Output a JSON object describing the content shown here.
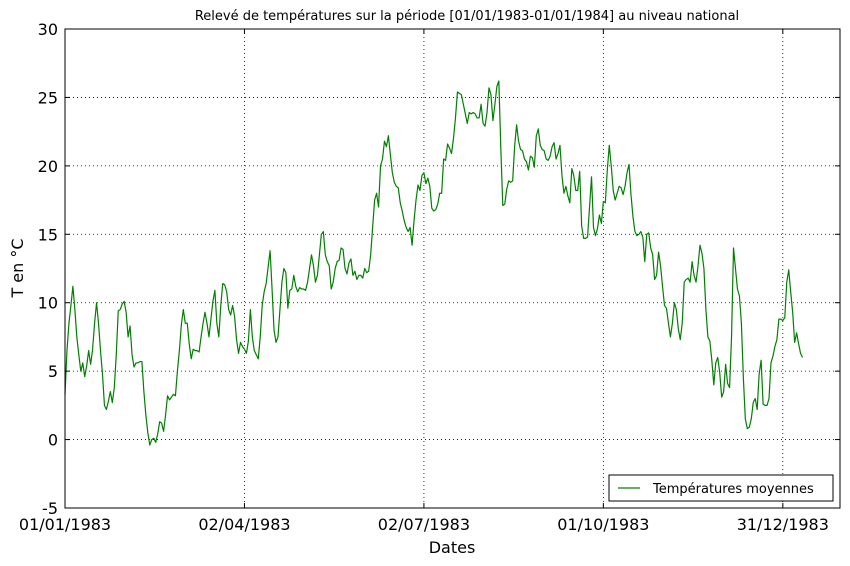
{
  "chart_data": {
    "type": "line",
    "title": "Relevé de températures sur la période [01/01/1983-01/01/1984] au niveau national",
    "xlabel": "Dates",
    "ylabel": "T en °C",
    "ylim": [
      -5,
      30
    ],
    "yticks": [
      -5,
      0,
      5,
      10,
      15,
      20,
      25,
      30
    ],
    "xlim": [
      "1983-01-01",
      "1984-01-29"
    ],
    "xticks": [
      {
        "date": "1983-01-01",
        "label": "01/01/1983"
      },
      {
        "date": "1983-04-02",
        "label": "02/04/1983"
      },
      {
        "date": "1983-07-02",
        "label": "02/07/1983"
      },
      {
        "date": "1983-10-01",
        "label": "01/10/1983"
      },
      {
        "date": "1983-12-31",
        "label": "31/12/1983"
      }
    ],
    "grid": true,
    "legend_position": "bottom-right",
    "series": [
      {
        "name": "Températures moyennes",
        "color": "#008000",
        "x_start": "1983-01-01",
        "x_step_days": 1,
        "values": [
          3.3,
          6.5,
          8.5,
          9.8,
          11.2,
          9.5,
          7.5,
          6.2,
          5.0,
          5.6,
          4.6,
          5.4,
          6.5,
          5.5,
          6.6,
          8.5,
          10.0,
          8.5,
          6.5,
          4.8,
          2.5,
          2.2,
          2.8,
          3.5,
          2.7,
          3.8,
          6.2,
          9.4,
          9.5,
          9.9,
          10.1,
          9.3,
          7.5,
          8.3,
          6.2,
          5.3,
          5.6,
          5.6,
          5.7,
          5.7,
          3.5,
          1.8,
          0.5,
          -0.4,
          0.0,
          0.1,
          -0.2,
          0.4,
          1.3,
          1.2,
          0.6,
          1.8,
          3.2,
          2.9,
          3.1,
          3.3,
          3.2,
          5.0,
          6.5,
          8.4,
          9.5,
          8.5,
          8.5,
          7.0,
          5.9,
          6.6,
          6.5,
          6.5,
          6.4,
          7.5,
          8.5,
          9.3,
          8.5,
          7.5,
          8.8,
          10.1,
          10.9,
          8.5,
          7.5,
          9.8,
          11.4,
          11.3,
          10.8,
          9.5,
          9.1,
          9.8,
          9.0,
          7.3,
          6.3,
          7.1,
          6.8,
          6.6,
          6.3,
          7.2,
          9.5,
          7.5,
          6.5,
          6.2,
          5.9,
          7.5,
          9.8,
          10.8,
          11.4,
          12.6,
          13.8,
          11.0,
          8.0,
          7.1,
          7.5,
          9.5,
          11.5,
          12.5,
          12.2,
          9.6,
          10.9,
          11.0,
          12.0,
          11.2,
          10.8,
          11.1,
          11.0,
          11.0,
          10.9,
          11.5,
          12.5,
          13.5,
          12.7,
          11.5,
          12.0,
          13.5,
          15.0,
          15.2,
          13.5,
          13.0,
          12.7,
          11.0,
          11.5,
          12.5,
          13.0,
          13.1,
          14.0,
          13.9,
          12.5,
          12.1,
          12.9,
          13.2,
          12.0,
          12.3,
          11.7,
          12.0,
          12.0,
          11.8,
          12.5,
          12.2,
          12.3,
          13.5,
          15.5,
          17.5,
          18.0,
          17.0,
          20.0,
          20.5,
          21.8,
          21.4,
          22.2,
          20.8,
          19.5,
          18.8,
          18.5,
          18.4,
          17.3,
          16.7,
          16.0,
          15.5,
          15.2,
          15.5,
          14.2,
          16.0,
          17.5,
          18.6,
          18.2,
          19.3,
          19.5,
          18.7,
          19.1,
          18.5,
          16.9,
          16.7,
          16.8,
          17.2,
          18.0,
          18.0,
          20.5,
          20.4,
          21.6,
          21.3,
          20.9,
          22.0,
          23.5,
          25.4,
          25.3,
          25.2,
          24.5,
          23.8,
          23.1,
          23.9,
          23.8,
          23.9,
          23.8,
          23.5,
          23.5,
          24.5,
          23.1,
          22.9,
          23.9,
          25.7,
          25.2,
          23.3,
          24.5,
          25.8,
          26.2,
          21.3,
          17.1,
          17.2,
          18.3,
          18.9,
          18.8,
          18.9,
          21.4,
          23.0,
          21.8,
          21.2,
          21.1,
          20.5,
          20.3,
          19.7,
          20.7,
          20.6,
          19.9,
          22.2,
          22.7,
          21.5,
          21.2,
          21.1,
          20.5,
          20.4,
          20.7,
          21.4,
          21.7,
          20.5,
          20.9,
          21.5,
          19.3,
          18.0,
          18.5,
          17.8,
          17.3,
          19.8,
          19.3,
          18.2,
          18.2,
          19.6,
          15.6,
          14.7,
          14.7,
          14.8,
          17.0,
          19.2,
          15.5,
          14.9,
          15.4,
          16.4,
          15.8,
          17.4,
          17.3,
          19.7,
          21.5,
          20.0,
          18.2,
          17.5,
          18.0,
          18.5,
          18.4,
          17.9,
          18.5,
          19.5,
          20.1,
          17.9,
          16.3,
          15.2,
          14.9,
          15.0,
          15.2,
          14.8,
          13.0,
          15.0,
          15.1,
          14.0,
          13.5,
          11.7,
          12.0,
          13.7,
          12.7,
          11.2,
          9.8,
          9.6,
          8.5,
          7.5,
          8.5,
          10.0,
          9.5,
          8.1,
          7.3,
          8.5,
          11.5,
          11.7,
          11.8,
          11.5,
          13.0,
          12.0,
          11.5,
          12.7,
          14.2,
          13.6,
          12.5,
          9.5,
          7.5,
          7.2,
          5.8,
          4.0,
          5.6,
          6.0,
          4.9,
          3.1,
          3.5,
          5.5,
          4.1,
          3.8,
          7.5,
          14.0,
          12.5,
          11.0,
          10.5,
          8.5,
          4.5,
          1.5,
          0.8,
          0.9,
          1.5,
          2.7,
          3.0,
          2.2,
          4.8,
          5.8,
          2.6,
          2.5,
          2.5,
          3.0,
          5.6,
          6.1,
          6.8,
          7.3,
          8.8,
          8.8,
          8.7,
          8.9,
          11.5,
          12.4,
          10.8,
          9.3,
          7.1,
          7.8,
          7.0,
          6.3,
          6.0
        ]
      }
    ]
  }
}
